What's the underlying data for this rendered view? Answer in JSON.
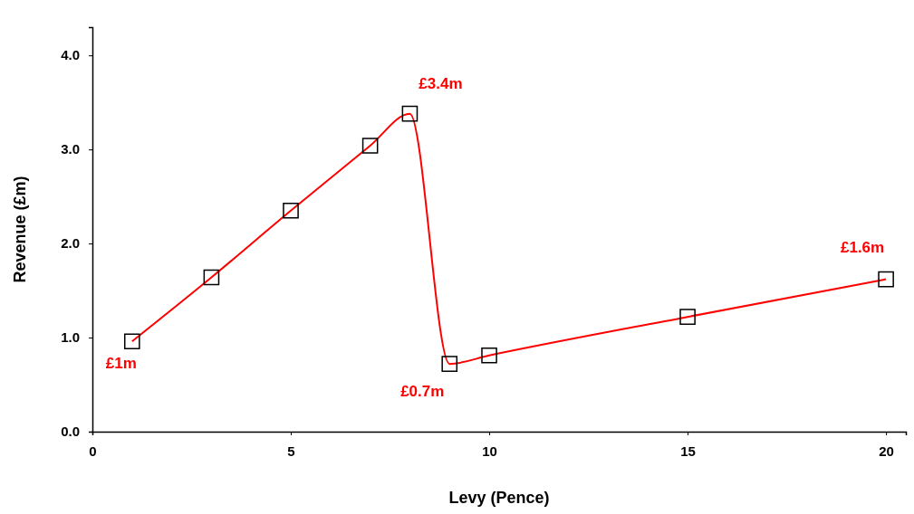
{
  "chart_data": {
    "type": "line",
    "xlabel": "Levy (Pence)",
    "ylabel": "Revenue (£m)",
    "x": [
      1,
      3,
      5,
      7,
      8,
      9,
      10,
      15,
      20
    ],
    "series": [
      {
        "color": "#ff0000",
        "values": [
          0.96,
          1.64,
          2.35,
          3.04,
          3.38,
          0.72,
          0.81,
          1.22,
          1.62
        ]
      }
    ],
    "xlim": [
      0,
      20.5
    ],
    "ylim": [
      0,
      4.3
    ],
    "xticks": [
      0,
      5,
      10,
      15,
      20
    ],
    "yticks": [
      {
        "value": 0,
        "label": "0.0"
      },
      {
        "value": 1,
        "label": "1.0"
      },
      {
        "value": 2,
        "label": "2.0"
      },
      {
        "value": 3,
        "label": "3.0"
      },
      {
        "value": 4,
        "label": "4.0"
      }
    ],
    "marker": "square",
    "grid": false,
    "annotations": [
      {
        "text": "£1m",
        "x": 1,
        "y": 0.96
      },
      {
        "text": "£3.4m",
        "x": 8,
        "y": 3.38
      },
      {
        "text": "£0.7m",
        "x": 9,
        "y": 0.72
      },
      {
        "text": "£1.6m",
        "x": 20,
        "y": 1.62
      }
    ]
  }
}
